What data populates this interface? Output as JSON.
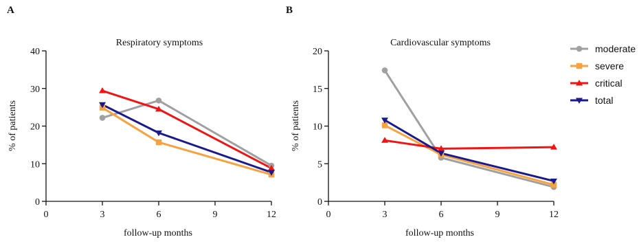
{
  "panels": [
    "A",
    "B"
  ],
  "colors": {
    "moderate": "#a0a0a0",
    "severe": "#f7a23e",
    "critical": "#f01414",
    "total": "#1a1a8c"
  },
  "legend": {
    "placement": "right",
    "items": [
      {
        "label": "moderate",
        "marker": "circle",
        "color_key": "moderate"
      },
      {
        "label": "severe",
        "marker": "square",
        "color_key": "severe"
      },
      {
        "label": "critical",
        "marker": "triangle-up",
        "color_key": "critical"
      },
      {
        "label": "total",
        "marker": "triangle-down",
        "color_key": "total"
      }
    ]
  },
  "chart_data": [
    {
      "type": "line",
      "panel": "A",
      "title": "Respiratory symptoms",
      "xlabel": "follow-up months",
      "ylabel": "% of patients",
      "xlim": [
        0,
        12
      ],
      "ylim": [
        0,
        40
      ],
      "xticks": [
        0,
        3,
        6,
        9,
        12
      ],
      "yticks": [
        0,
        10,
        20,
        30,
        40
      ],
      "x": [
        3,
        6,
        12
      ],
      "series": [
        {
          "name": "moderate",
          "marker": "circle",
          "values": [
            22.2,
            26.8,
            9.5
          ]
        },
        {
          "name": "severe",
          "marker": "square",
          "values": [
            24.9,
            15.7,
            7.1
          ]
        },
        {
          "name": "critical",
          "marker": "triangle-up",
          "values": [
            29.4,
            24.5,
            8.8
          ]
        },
        {
          "name": "total",
          "marker": "triangle-down",
          "values": [
            25.7,
            18.2,
            7.7
          ]
        }
      ]
    },
    {
      "type": "line",
      "panel": "B",
      "title": "Cardiovascular symptoms",
      "xlabel": "follow-up months",
      "ylabel": "% of patients",
      "xlim": [
        0,
        12
      ],
      "ylim": [
        0,
        20
      ],
      "xticks": [
        0,
        3,
        6,
        9,
        12
      ],
      "yticks": [
        0,
        5,
        10,
        15,
        20
      ],
      "x": [
        3,
        6,
        12
      ],
      "series": [
        {
          "name": "moderate",
          "marker": "circle",
          "values": [
            17.4,
            5.8,
            1.9
          ]
        },
        {
          "name": "severe",
          "marker": "square",
          "values": [
            10.1,
            6.2,
            2.2
          ]
        },
        {
          "name": "critical",
          "marker": "triangle-up",
          "values": [
            8.1,
            7.0,
            7.2
          ]
        },
        {
          "name": "total",
          "marker": "triangle-down",
          "values": [
            10.8,
            6.4,
            2.7
          ]
        }
      ]
    }
  ]
}
